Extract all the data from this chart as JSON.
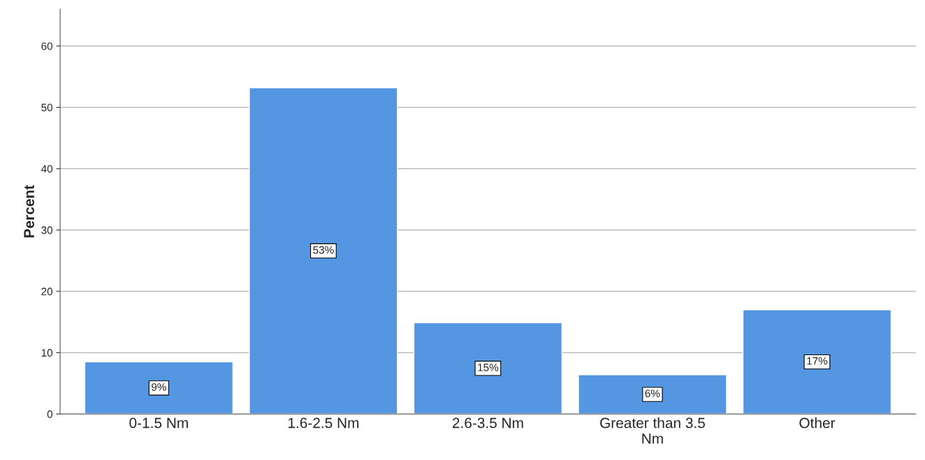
{
  "chart_data": {
    "type": "bar",
    "ylabel": "Percent",
    "categories": [
      "0-1.5 Nm",
      "1.6-2.5 Nm",
      "2.6-3.5 Nm",
      "Greater than 3.5\nNm",
      "Other"
    ],
    "values": [
      8.5,
      53.2,
      14.9,
      6.4,
      17.0
    ],
    "value_labels": [
      "9%",
      "53%",
      "15%",
      "6%",
      "17%"
    ],
    "color": "#5596e3",
    "ylim": [
      0,
      66
    ],
    "yticks": [
      0,
      10,
      20,
      30,
      40,
      50,
      60
    ],
    "grid": "y"
  }
}
